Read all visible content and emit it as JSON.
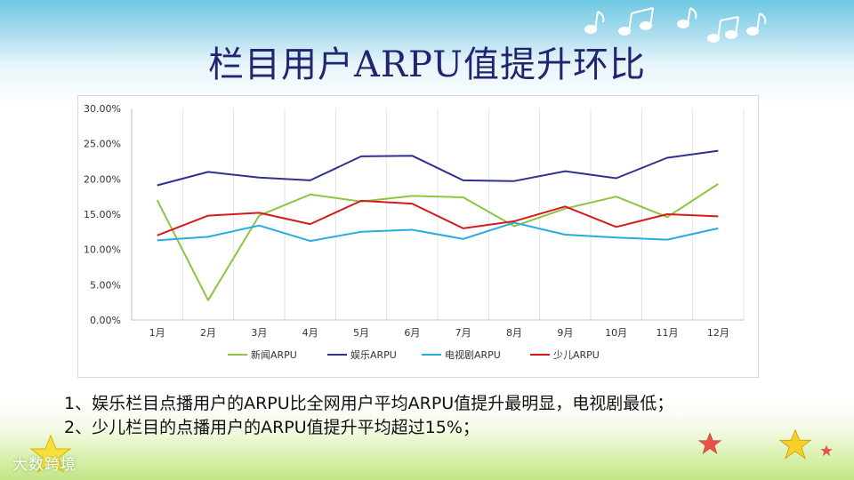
{
  "slide": {
    "title": "栏目用户ARPU值提升环比",
    "notes": [
      "1、娱乐栏目点播用户的ARPU比全网用户平均ARPU值提升最明显，电视剧最低；",
      "2、少儿栏目的点播用户的ARPU值提升平均超过15%；"
    ],
    "logo_text": "大数跨境"
  },
  "decor": {
    "note_icon": "music-note-icon",
    "star_icon": "star-icon"
  },
  "chart_data": {
    "type": "line",
    "categories": [
      "1月",
      "2月",
      "3月",
      "4月",
      "5月",
      "6月",
      "7月",
      "8月",
      "9月",
      "10月",
      "11月",
      "12月"
    ],
    "ylim": [
      0,
      0.3
    ],
    "yticks": [
      0,
      0.05,
      0.1,
      0.15,
      0.2,
      0.25,
      0.3
    ],
    "ytick_labels": [
      "0.00%",
      "5.00%",
      "10.00%",
      "15.00%",
      "20.00%",
      "25.00%",
      "30.00%"
    ],
    "grid": "vertical",
    "legend": "bottom",
    "series": [
      {
        "name": "新闻ARPU",
        "color": "#8cc63f",
        "values": [
          0.17,
          0.028,
          0.148,
          0.178,
          0.168,
          0.176,
          0.174,
          0.133,
          0.158,
          0.175,
          0.146,
          0.193
        ]
      },
      {
        "name": "娱乐ARPU",
        "color": "#2e3192",
        "values": [
          0.191,
          0.21,
          0.202,
          0.198,
          0.232,
          0.233,
          0.198,
          0.197,
          0.211,
          0.201,
          0.23,
          0.24
        ]
      },
      {
        "name": "电视剧ARPU",
        "color": "#29abe2",
        "values": [
          0.113,
          0.118,
          0.134,
          0.112,
          0.125,
          0.128,
          0.115,
          0.138,
          0.121,
          0.117,
          0.114,
          0.13
        ]
      },
      {
        "name": "少儿ARPU",
        "color": "#d7191c",
        "values": [
          0.12,
          0.148,
          0.152,
          0.136,
          0.169,
          0.165,
          0.13,
          0.14,
          0.161,
          0.132,
          0.15,
          0.147
        ]
      }
    ]
  }
}
